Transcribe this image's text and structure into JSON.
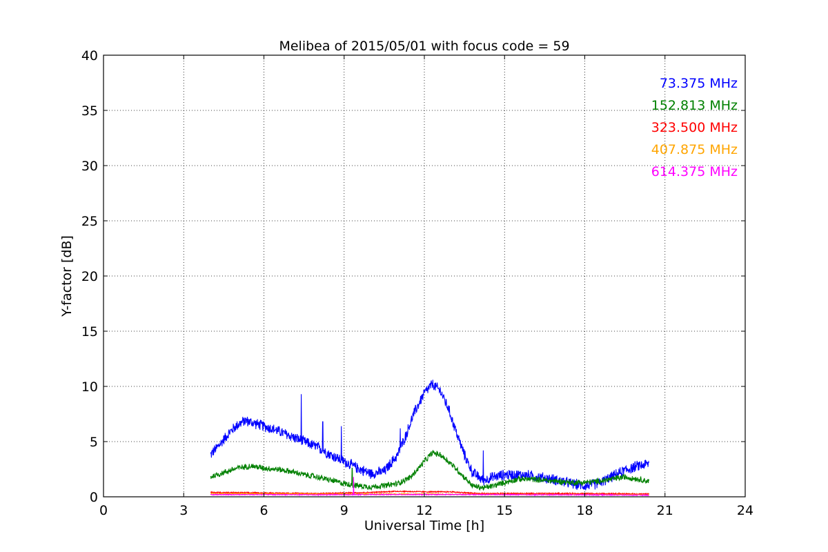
{
  "chart_data": {
    "type": "line",
    "title": "Melibea of 2015/05/01 with focus code = 59",
    "xlabel": "Universal Time [h]",
    "ylabel": "Y-factor [dB]",
    "xlim": [
      0,
      24
    ],
    "ylim": [
      0,
      40
    ],
    "xticks": [
      0,
      3,
      6,
      9,
      12,
      15,
      18,
      21,
      24
    ],
    "yticks": [
      0,
      5,
      10,
      15,
      20,
      25,
      30,
      35,
      40
    ],
    "grid": true,
    "legend_position": "top-right",
    "series": [
      {
        "name": "73.375 MHz",
        "color": "#0000ff",
        "noise": 0.55,
        "x": [
          4.0,
          4.3,
          4.7,
          5.0,
          5.3,
          5.6,
          6.0,
          6.5,
          7.0,
          7.5,
          8.0,
          8.5,
          9.0,
          9.5,
          10.0,
          10.5,
          11.0,
          11.3,
          11.6,
          12.0,
          12.3,
          12.6,
          12.9,
          13.2,
          13.5,
          13.8,
          14.2,
          14.6,
          15.0,
          15.5,
          16.0,
          16.5,
          17.0,
          17.5,
          18.0,
          18.5,
          19.0,
          19.5,
          20.0,
          20.4
        ],
        "y": [
          3.8,
          4.6,
          5.8,
          6.5,
          6.9,
          6.7,
          6.4,
          6.0,
          5.5,
          5.0,
          4.5,
          3.8,
          3.2,
          2.6,
          2.1,
          2.3,
          3.8,
          5.5,
          7.5,
          9.4,
          10.2,
          9.6,
          8.0,
          5.8,
          3.8,
          2.2,
          1.5,
          1.8,
          2.0,
          2.0,
          1.9,
          1.7,
          1.5,
          1.2,
          1.0,
          1.2,
          1.8,
          2.4,
          2.8,
          3.0
        ],
        "spikes": [
          [
            7.4,
            9.3
          ],
          [
            8.2,
            6.8
          ],
          [
            8.9,
            6.4
          ],
          [
            11.1,
            6.2
          ],
          [
            14.2,
            4.2
          ]
        ]
      },
      {
        "name": "152.813 MHz",
        "color": "#008000",
        "noise": 0.3,
        "x": [
          4.0,
          4.5,
          5.0,
          5.5,
          6.0,
          6.5,
          7.0,
          7.5,
          8.0,
          8.5,
          9.0,
          9.5,
          10.0,
          10.5,
          11.0,
          11.5,
          12.0,
          12.3,
          12.6,
          13.0,
          13.4,
          13.8,
          14.2,
          14.6,
          15.0,
          15.5,
          16.0,
          16.5,
          17.0,
          17.5,
          18.0,
          18.5,
          19.0,
          19.5,
          20.0,
          20.4
        ],
        "y": [
          1.8,
          2.2,
          2.6,
          2.8,
          2.6,
          2.5,
          2.3,
          2.0,
          1.8,
          1.5,
          1.2,
          1.0,
          0.9,
          1.0,
          1.2,
          1.8,
          3.2,
          4.0,
          3.8,
          3.0,
          2.0,
          1.0,
          0.8,
          1.0,
          1.3,
          1.6,
          1.6,
          1.5,
          1.4,
          1.3,
          1.3,
          1.4,
          1.6,
          1.8,
          1.6,
          1.4
        ],
        "spikes": [
          [
            9.3,
            2.6
          ]
        ]
      },
      {
        "name": "323.500 MHz",
        "color": "#ff0000",
        "noise": 0.06,
        "x": [
          4.0,
          6.0,
          8.0,
          10.0,
          11.0,
          12.0,
          13.0,
          14.0,
          16.0,
          18.0,
          20.4
        ],
        "y": [
          0.4,
          0.35,
          0.3,
          0.4,
          0.5,
          0.45,
          0.45,
          0.3,
          0.3,
          0.3,
          0.25
        ],
        "spikes": []
      },
      {
        "name": "407.875 MHz",
        "color": "#ffa500",
        "noise": 0.05,
        "x": [
          4.0,
          6.0,
          8.0,
          10.0,
          12.0,
          14.0,
          16.0,
          18.0,
          20.4
        ],
        "y": [
          0.3,
          0.28,
          0.25,
          0.25,
          0.25,
          0.22,
          0.2,
          0.2,
          0.2
        ],
        "spikes": []
      },
      {
        "name": "614.375 MHz",
        "color": "#ff00ff",
        "noise": 0.05,
        "x": [
          4.0,
          6.0,
          8.0,
          10.0,
          12.0,
          14.0,
          16.0,
          18.0,
          20.4
        ],
        "y": [
          0.2,
          0.2,
          0.18,
          0.2,
          0.2,
          0.2,
          0.18,
          0.18,
          0.15
        ],
        "spikes": [
          [
            9.35,
            1.8
          ]
        ]
      }
    ]
  }
}
